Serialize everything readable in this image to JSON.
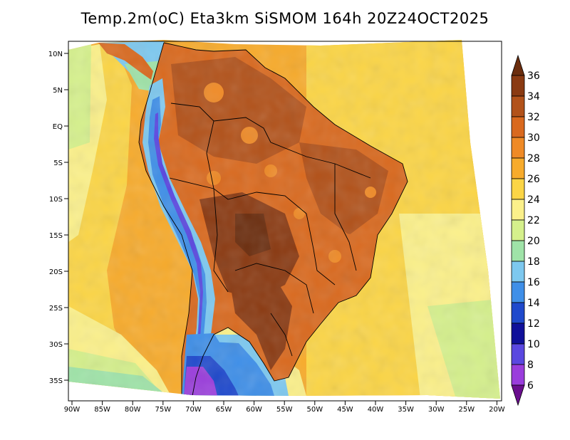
{
  "title": "Temp.2m(oC) Eta3km SiSMOM 164h 20Z24OCT2025",
  "lat_labels": [
    "10N",
    "5N",
    "EQ",
    "5S",
    "10S",
    "15S",
    "20S",
    "25S",
    "30S",
    "35S"
  ],
  "lon_labels": [
    "90W",
    "85W",
    "80W",
    "75W",
    "70W",
    "65W",
    "60W",
    "55W",
    "50W",
    "45W",
    "40W",
    "35W",
    "30W",
    "25W",
    "20W"
  ],
  "colorbar": {
    "unit": "oC",
    "labels": [
      "36",
      "34",
      "32",
      "30",
      "28",
      "26",
      "24",
      "22",
      "20",
      "18",
      "16",
      "14",
      "12",
      "10",
      "8",
      "6"
    ],
    "colors": [
      "#6b2d0e",
      "#8a3a12",
      "#b2521a",
      "#d9691e",
      "#ef8a26",
      "#f7ab2c",
      "#fbd546",
      "#fbf08a",
      "#d5f08c",
      "#9fe3a8",
      "#7dc8ef",
      "#3f8fe8",
      "#1f49cc",
      "#10109a",
      "#5a47e0",
      "#9a3ddc",
      "#6a0e8e"
    ]
  }
}
